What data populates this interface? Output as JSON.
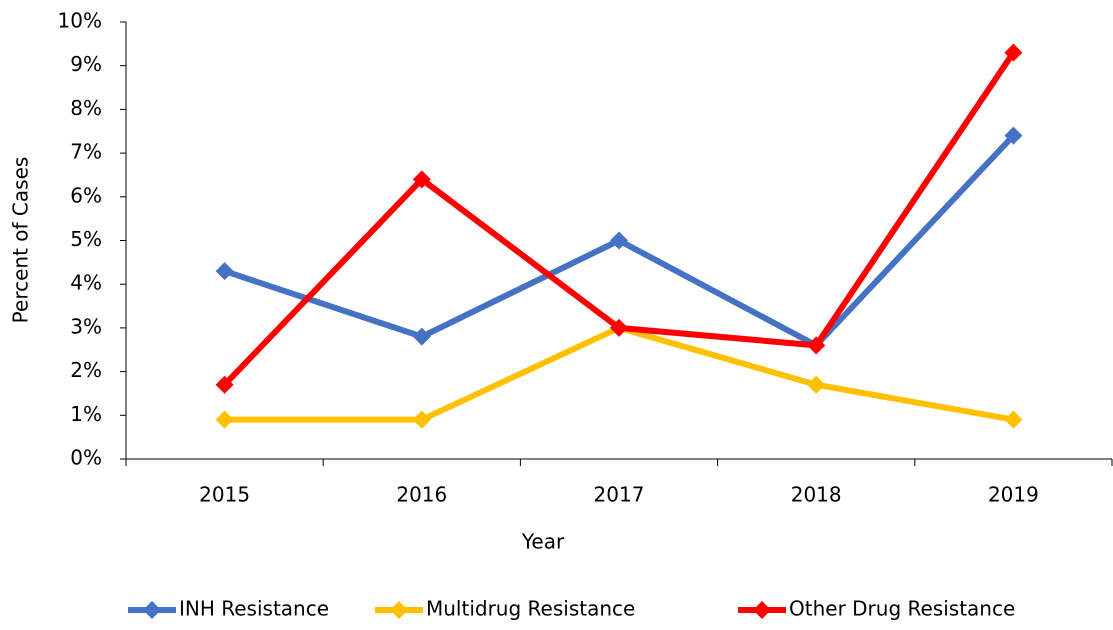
{
  "chart_data": {
    "type": "line",
    "x_label": "Year",
    "y_label": "Percent of Cases",
    "categories": [
      "2015",
      "2016",
      "2017",
      "2018",
      "2019"
    ],
    "series": [
      {
        "name": "INH Resistance",
        "color": "#4472c4",
        "values": [
          4.3,
          2.8,
          5.0,
          2.6,
          7.4
        ]
      },
      {
        "name": "Multidrug Resistance",
        "color": "#ffc000",
        "values": [
          0.9,
          0.9,
          3.0,
          1.7,
          0.9
        ]
      },
      {
        "name": "Other Drug Resistance",
        "color": "#ff0000",
        "values": [
          1.7,
          6.4,
          3.0,
          2.6,
          9.3
        ]
      }
    ],
    "ylim": [
      0,
      10
    ],
    "yticks": [
      {
        "value": 0,
        "label": "0%"
      },
      {
        "value": 1,
        "label": "1%"
      },
      {
        "value": 2,
        "label": "2%"
      },
      {
        "value": 3,
        "label": "3%"
      },
      {
        "value": 4,
        "label": "4%"
      },
      {
        "value": 5,
        "label": "5%"
      },
      {
        "value": 6,
        "label": "6%"
      },
      {
        "value": 7,
        "label": "7%"
      },
      {
        "value": 8,
        "label": "8%"
      },
      {
        "value": 9,
        "label": "9%"
      },
      {
        "value": 10,
        "label": "10%"
      }
    ],
    "grid": false,
    "legend": "bottom"
  }
}
